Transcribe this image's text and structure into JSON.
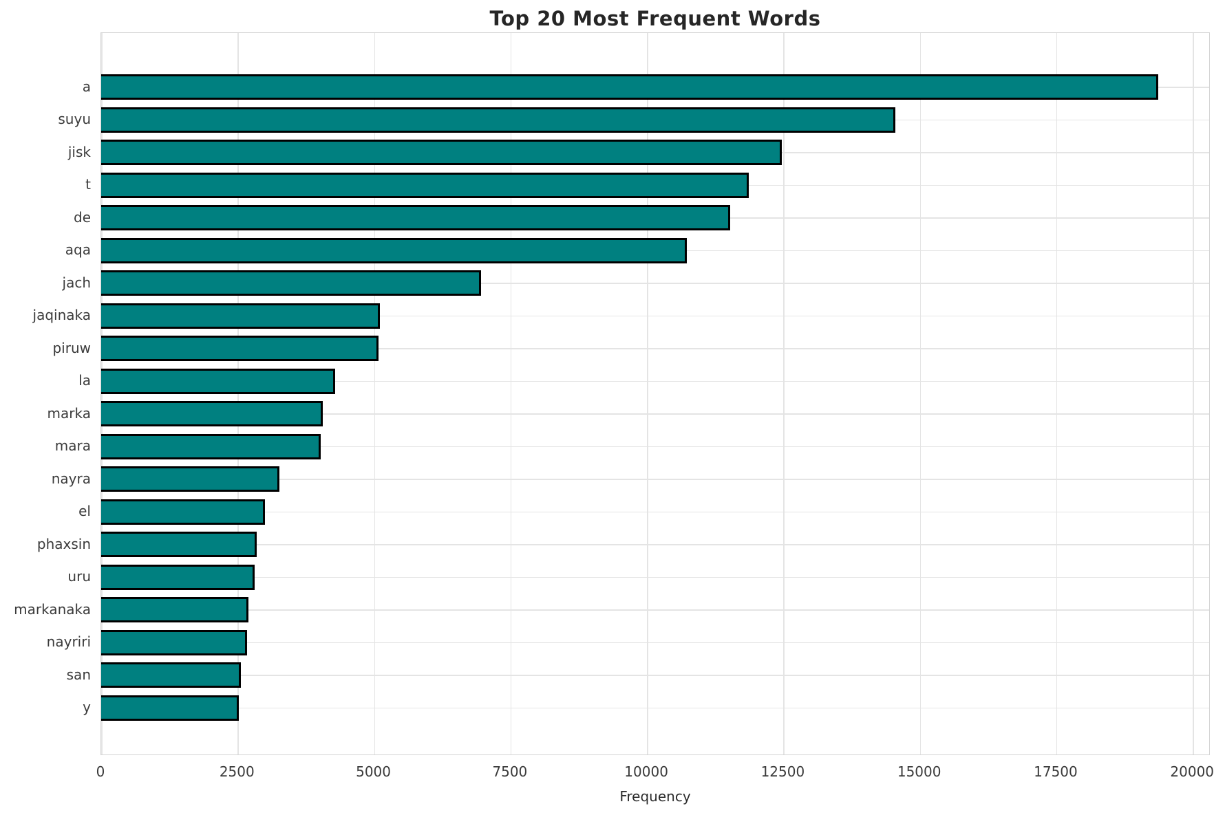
{
  "chart_data": {
    "type": "bar",
    "orientation": "horizontal",
    "title": "Top 20 Most Frequent Words",
    "xlabel": "Frequency",
    "ylabel": "",
    "categories": [
      "a",
      "suyu",
      "jisk",
      "t",
      "de",
      "aqa",
      "jach",
      "jaqinaka",
      "piruw",
      "la",
      "marka",
      "mara",
      "nayra",
      "el",
      "phaxsin",
      "uru",
      "markanaka",
      "nayriri",
      "san",
      "y"
    ],
    "values": [
      19370,
      14550,
      12470,
      11860,
      11520,
      10730,
      6960,
      5110,
      5080,
      4290,
      4060,
      4020,
      3270,
      3000,
      2845,
      2815,
      2700,
      2675,
      2565,
      2520
    ],
    "xticks": [
      0,
      2500,
      5000,
      7500,
      10000,
      12500,
      15000,
      17500,
      20000
    ],
    "xlim": [
      0,
      20325
    ],
    "grid": true,
    "legend_position": "none",
    "bar_color": "#008080",
    "bar_edge_color": "#000000"
  }
}
